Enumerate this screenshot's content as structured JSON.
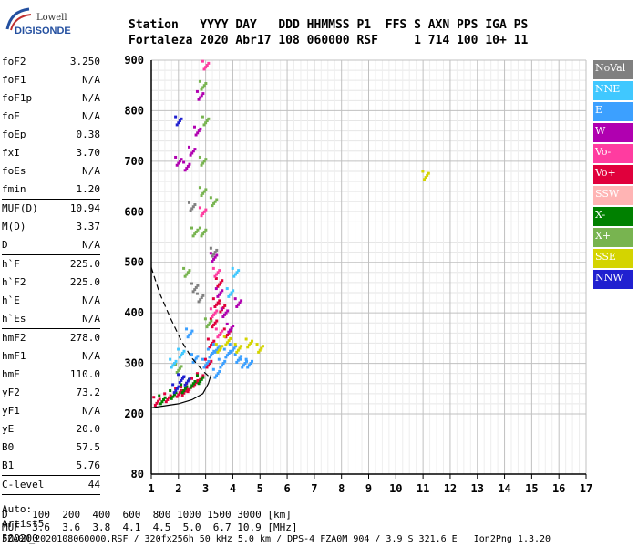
{
  "logo": {
    "line1": "Lowell",
    "line2": "DIGISONDE"
  },
  "header": {
    "line1": "Station   YYYY DAY   DDD HHMMSS P1  FFS S AXN PPS IGA PS",
    "line2": "Fortaleza 2020 Abr17 108 060000 RSF     1 714 100 10+ 11"
  },
  "params": [
    {
      "label": "foF2",
      "value": "3.250"
    },
    {
      "label": "foF1",
      "value": "N/A"
    },
    {
      "label": "foF1p",
      "value": "N/A"
    },
    {
      "label": "foE",
      "value": "N/A"
    },
    {
      "label": "foEp",
      "value": "0.38"
    },
    {
      "label": "fxI",
      "value": "3.70"
    },
    {
      "label": "foEs",
      "value": "N/A"
    },
    {
      "label": "fmin",
      "value": "1.20"
    },
    {
      "label": "MUF(D)",
      "value": "10.94"
    },
    {
      "label": "M(D)",
      "value": "3.37"
    },
    {
      "label": "D",
      "value": "N/A"
    },
    {
      "label": "h`F",
      "value": "225.0"
    },
    {
      "label": "h`F2",
      "value": "225.0"
    },
    {
      "label": "h`E",
      "value": "N/A"
    },
    {
      "label": "h`Es",
      "value": "N/A"
    },
    {
      "label": "hmF2",
      "value": "278.0"
    },
    {
      "label": "hmF1",
      "value": "N/A"
    },
    {
      "label": "hmE",
      "value": "110.0"
    },
    {
      "label": "yF2",
      "value": "73.2"
    },
    {
      "label": "yF1",
      "value": "N/A"
    },
    {
      "label": "yE",
      "value": "20.0"
    },
    {
      "label": "B0",
      "value": "57.5"
    },
    {
      "label": "B1",
      "value": "5.76"
    },
    {
      "label": "C-level",
      "value": "44"
    }
  ],
  "auto": [
    "Auto:",
    "Artist5",
    "500200"
  ],
  "legend": [
    {
      "label": "NoVal",
      "color": "#808080"
    },
    {
      "label": "NNE",
      "color": "#40c8ff"
    },
    {
      "label": "E",
      "color": "#3ca0ff"
    },
    {
      "label": "W",
      "color": "#b000b0"
    },
    {
      "label": "Vo-",
      "color": "#ff3ca0"
    },
    {
      "label": "Vo+",
      "color": "#e0003c"
    },
    {
      "label": "SSW",
      "color": "#ffb4b4"
    },
    {
      "label": "X-",
      "color": "#008000"
    },
    {
      "label": "X+",
      "color": "#78b450"
    },
    {
      "label": "SSE",
      "color": "#d4d400"
    },
    {
      "label": "NNW",
      "color": "#2020d0"
    }
  ],
  "bottom": {
    "d_line": "D    100  200  400  600  800 1000 1500 3000 [km]",
    "muf_line": "MUF  3.6  3.6  3.8  4.1  4.5  5.0  6.7 10.9 [MHz]",
    "footer": "FZA0M_2020108060000.RSF / 320fx256h 50 kHz 5.0 km / DPS-4 FZA0M 904 / 3.9 S 321.6 E   Ion2Png 1.3.20"
  },
  "chart_data": {
    "type": "scatter",
    "x_ticks": [
      1,
      2,
      3,
      4,
      5,
      6,
      7,
      8,
      9,
      10,
      11,
      12,
      13,
      14,
      15,
      16,
      17
    ],
    "y_ticks": [
      80,
      200,
      300,
      400,
      500,
      600,
      700,
      800,
      900
    ],
    "xlim": [
      1,
      17
    ],
    "ylim": [
      80,
      900
    ],
    "series": [
      {
        "name": "Vo+",
        "color": "#e0003c",
        "points": [
          [
            1.2,
            225
          ],
          [
            1.6,
            232
          ],
          [
            2.0,
            242
          ],
          [
            2.4,
            252
          ],
          [
            2.8,
            272
          ],
          [
            3.1,
            300
          ],
          [
            3.2,
            340
          ],
          [
            3.3,
            380
          ],
          [
            3.4,
            420
          ],
          [
            3.5,
            460
          ],
          [
            3.6,
            410
          ],
          [
            3.8,
            360
          ],
          [
            2.2,
            245
          ],
          [
            2.6,
            262
          ]
        ]
      },
      {
        "name": "W",
        "color": "#b000b0",
        "points": [
          [
            3.5,
            440
          ],
          [
            3.7,
            400
          ],
          [
            3.9,
            370
          ],
          [
            2.8,
            830
          ],
          [
            2.7,
            760
          ],
          [
            2.5,
            720
          ],
          [
            2.3,
            690
          ],
          [
            2.0,
            700
          ],
          [
            4.2,
            420
          ],
          [
            3.3,
            510
          ]
        ]
      },
      {
        "name": "E",
        "color": "#3ca0ff",
        "points": [
          [
            3.2,
            320
          ],
          [
            3.4,
            330
          ],
          [
            3.6,
            300
          ],
          [
            3.8,
            320
          ],
          [
            4.0,
            330
          ],
          [
            4.2,
            310
          ],
          [
            4.4,
            300
          ],
          [
            4.6,
            300
          ],
          [
            3.0,
            300
          ],
          [
            3.4,
            280
          ],
          [
            2.6,
            310
          ],
          [
            2.4,
            360
          ]
        ]
      },
      {
        "name": "X+",
        "color": "#78b450",
        "points": [
          [
            2.9,
            850
          ],
          [
            3.0,
            780
          ],
          [
            2.9,
            700
          ],
          [
            2.9,
            640
          ],
          [
            2.9,
            560
          ],
          [
            2.3,
            480
          ],
          [
            2.6,
            560
          ],
          [
            3.1,
            380
          ],
          [
            2.0,
            290
          ],
          [
            3.3,
            620
          ]
        ]
      },
      {
        "name": "X-",
        "color": "#008000",
        "points": [
          [
            1.4,
            228
          ],
          [
            1.8,
            238
          ],
          [
            2.2,
            250
          ],
          [
            2.5,
            260
          ],
          [
            2.8,
            268
          ]
        ]
      },
      {
        "name": "SSE",
        "color": "#d4d400",
        "points": [
          [
            3.5,
            330
          ],
          [
            3.8,
            345
          ],
          [
            4.2,
            330
          ],
          [
            4.6,
            340
          ],
          [
            5.0,
            330
          ],
          [
            11.1,
            672
          ]
        ]
      },
      {
        "name": "Vo-",
        "color": "#ff3ca0",
        "points": [
          [
            3.4,
            480
          ],
          [
            3.5,
            360
          ],
          [
            3.3,
            400
          ],
          [
            2.9,
            600
          ],
          [
            3.0,
            890
          ]
        ]
      },
      {
        "name": "NNW",
        "color": "#2020d0",
        "points": [
          [
            2.0,
            780
          ],
          [
            1.9,
            250
          ],
          [
            2.1,
            270
          ],
          [
            2.3,
            265
          ]
        ]
      },
      {
        "name": "NoVal",
        "color": "#808080",
        "points": [
          [
            2.5,
            610
          ],
          [
            3.3,
            520
          ],
          [
            2.8,
            430
          ],
          [
            2.6,
            450
          ]
        ]
      },
      {
        "name": "NNE",
        "color": "#40c8ff",
        "points": [
          [
            1.8,
            300
          ],
          [
            2.1,
            320
          ],
          [
            3.9,
            440
          ],
          [
            4.1,
            480
          ]
        ]
      }
    ],
    "profile_curve": [
      [
        1,
        212
      ],
      [
        1.5,
        216
      ],
      [
        2.0,
        220
      ],
      [
        2.5,
        228
      ],
      [
        2.9,
        240
      ],
      [
        3.1,
        260
      ],
      [
        3.2,
        278
      ]
    ],
    "dashed_curve": [
      [
        1,
        490
      ],
      [
        1.3,
        440
      ],
      [
        1.7,
        390
      ],
      [
        2.1,
        345
      ],
      [
        2.5,
        310
      ],
      [
        2.9,
        285
      ],
      [
        3.1,
        275
      ]
    ]
  }
}
